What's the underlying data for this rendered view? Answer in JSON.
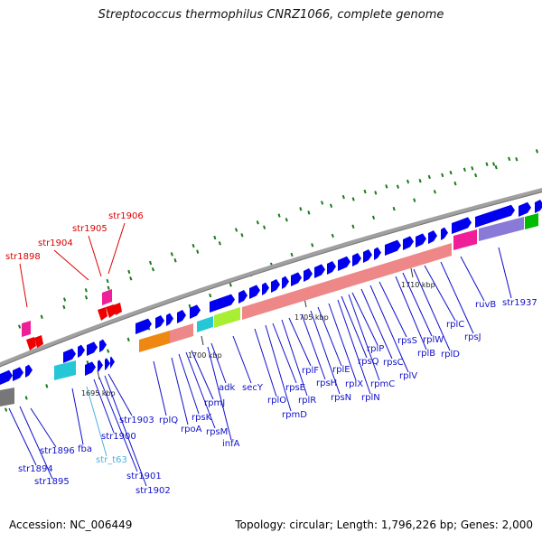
{
  "header": {
    "title": "Streptococcus thermophilus CNRZ1066, complete genome"
  },
  "footer": {
    "accession": "Accession: NC_006449",
    "summary": "Topology: circular; Length: 1,796,226 bp; Genes: 2,000"
  },
  "colors": {
    "cds": "#0000ee",
    "rrna_red": "#ee0000",
    "pink": "#ee1f99",
    "cyan": "#25c7d6",
    "salmon": "#ee8888",
    "orange": "#ee8811",
    "lime": "#a8ee33",
    "green": "#00bb00",
    "purple": "#8a7ad8",
    "gray": "#777777",
    "trna_label": "#4cb0e0",
    "dot": "#1a7a1a"
  },
  "ticks": [
    "1695 kbp",
    "1700 kbp",
    "1705 kbp",
    "1710 kbp"
  ],
  "gene_labels": [
    {
      "name": "str1894",
      "color": "blue"
    },
    {
      "name": "str1895",
      "color": "blue"
    },
    {
      "name": "str1896",
      "color": "blue"
    },
    {
      "name": "fba",
      "color": "blue"
    },
    {
      "name": "str_t63",
      "color": "cyan"
    },
    {
      "name": "str1900",
      "color": "blue"
    },
    {
      "name": "str1901",
      "color": "blue"
    },
    {
      "name": "str1902",
      "color": "blue"
    },
    {
      "name": "str1903",
      "color": "blue"
    },
    {
      "name": "rplQ",
      "color": "blue"
    },
    {
      "name": "rpoA",
      "color": "blue"
    },
    {
      "name": "rpsK",
      "color": "blue"
    },
    {
      "name": "rpsM",
      "color": "blue"
    },
    {
      "name": "rpmJ",
      "color": "blue"
    },
    {
      "name": "infA",
      "color": "blue"
    },
    {
      "name": "adk",
      "color": "blue"
    },
    {
      "name": "secY",
      "color": "blue"
    },
    {
      "name": "rplO",
      "color": "blue"
    },
    {
      "name": "rpmD",
      "color": "blue"
    },
    {
      "name": "rpsE",
      "color": "blue"
    },
    {
      "name": "rplR",
      "color": "blue"
    },
    {
      "name": "rplF",
      "color": "blue"
    },
    {
      "name": "rpsH",
      "color": "blue"
    },
    {
      "name": "rpsN",
      "color": "blue"
    },
    {
      "name": "rplE",
      "color": "blue"
    },
    {
      "name": "rplX",
      "color": "blue"
    },
    {
      "name": "rplN",
      "color": "blue"
    },
    {
      "name": "rpsQ",
      "color": "blue"
    },
    {
      "name": "rpmC",
      "color": "blue"
    },
    {
      "name": "rplP",
      "color": "blue"
    },
    {
      "name": "rpsC",
      "color": "blue"
    },
    {
      "name": "rplV",
      "color": "blue"
    },
    {
      "name": "rpsS",
      "color": "blue"
    },
    {
      "name": "rplB",
      "color": "blue"
    },
    {
      "name": "rplW",
      "color": "blue"
    },
    {
      "name": "rplD",
      "color": "blue"
    },
    {
      "name": "rplC",
      "color": "blue"
    },
    {
      "name": "rpsJ",
      "color": "blue"
    },
    {
      "name": "ruvB",
      "color": "blue"
    },
    {
      "name": "str1937",
      "color": "blue"
    },
    {
      "name": "str1898",
      "color": "red"
    },
    {
      "name": "str1904",
      "color": "red"
    },
    {
      "name": "str1905",
      "color": "red"
    },
    {
      "name": "str1906",
      "color": "red"
    }
  ]
}
